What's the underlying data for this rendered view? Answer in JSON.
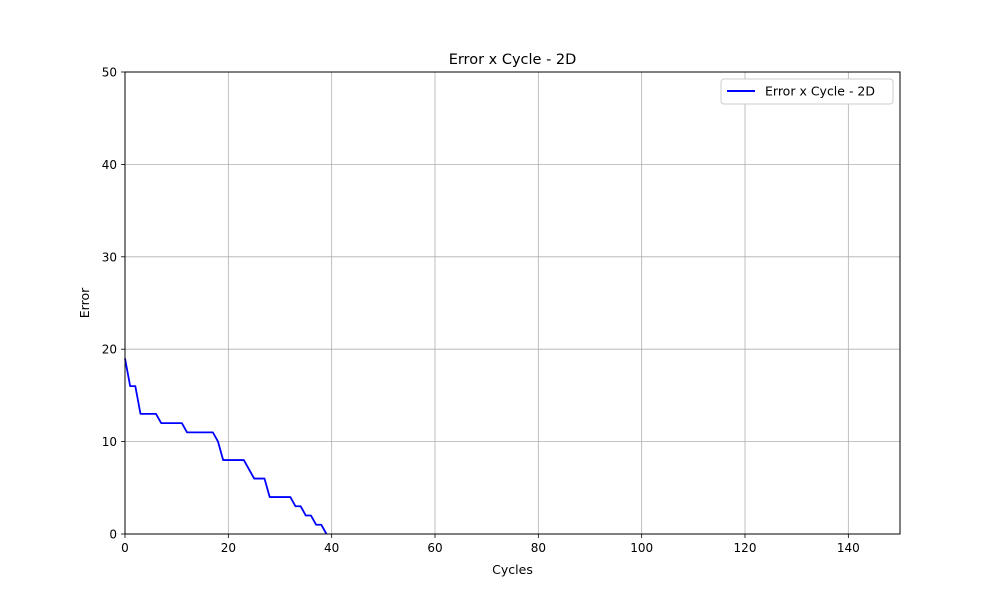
{
  "chart_data": {
    "type": "line",
    "title": "Error x Cycle - 2D",
    "xlabel": "Cycles",
    "ylabel": "Error",
    "xlim": [
      0,
      150
    ],
    "ylim": [
      0,
      50
    ],
    "xticks": [
      "0",
      "20",
      "40",
      "60",
      "80",
      "100",
      "120",
      "140"
    ],
    "yticks": [
      "0",
      "10",
      "20",
      "30",
      "40",
      "50"
    ],
    "grid": true,
    "legend_position": "top-right",
    "series": [
      {
        "name": "Error x Cycle - 2D",
        "color": "#0000ff",
        "x": [
          0,
          1,
          2,
          3,
          4,
          5,
          6,
          7,
          8,
          9,
          10,
          11,
          12,
          13,
          14,
          15,
          16,
          17,
          18,
          19,
          20,
          21,
          22,
          23,
          24,
          25,
          26,
          27,
          28,
          29,
          30,
          31,
          32,
          33,
          34,
          35,
          36,
          37,
          38,
          39
        ],
        "y": [
          19,
          16,
          16,
          13,
          13,
          13,
          13,
          12,
          12,
          12,
          12,
          12,
          11,
          11,
          11,
          11,
          11,
          11,
          10,
          8,
          8,
          8,
          8,
          8,
          7,
          6,
          6,
          6,
          4,
          4,
          4,
          4,
          4,
          3,
          3,
          2,
          2,
          1,
          1,
          0
        ]
      }
    ]
  }
}
